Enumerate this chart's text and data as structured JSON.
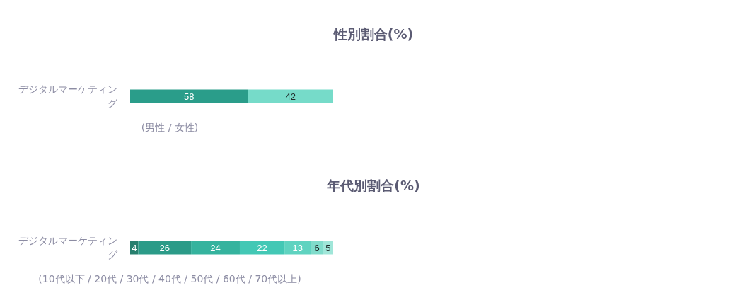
{
  "chart_data": [
    {
      "type": "bar",
      "title": "性別割合(%)",
      "xlabel": "(男性 / 女性)",
      "categories": [
        "デジタルマーケティング"
      ],
      "orientation": "horizontal",
      "stacked": true,
      "series": [
        {
          "color": "#2a9d8a",
          "values": [
            58
          ]
        },
        {
          "color": "#76dbc9",
          "values": [
            42
          ]
        }
      ],
      "xlim": [
        0,
        100
      ],
      "tick_labels": "y",
      "data_labels": true
    },
    {
      "type": "bar",
      "title": "年代別割合(%)",
      "xlabel": "(10代以下 / 20代 / 30代 / 40代 / 50代 / 60代 / 70代以上)",
      "categories": [
        "デジタルマーケティング"
      ],
      "orientation": "horizontal",
      "stacked": true,
      "series": [
        {
          "color": "#277f6e",
          "values": [
            4
          ]
        },
        {
          "color": "#2b9b88",
          "values": [
            26
          ]
        },
        {
          "color": "#35b39e",
          "values": [
            24
          ]
        },
        {
          "color": "#43c8b5",
          "values": [
            22
          ]
        },
        {
          "color": "#5fd3c0",
          "values": [
            13
          ]
        },
        {
          "color": "#80dccb",
          "values": [
            6
          ]
        },
        {
          "color": "#a0e6d9",
          "values": [
            5
          ]
        }
      ],
      "xlim": [
        0,
        100
      ],
      "tick_labels": "y",
      "data_labels": true
    }
  ]
}
